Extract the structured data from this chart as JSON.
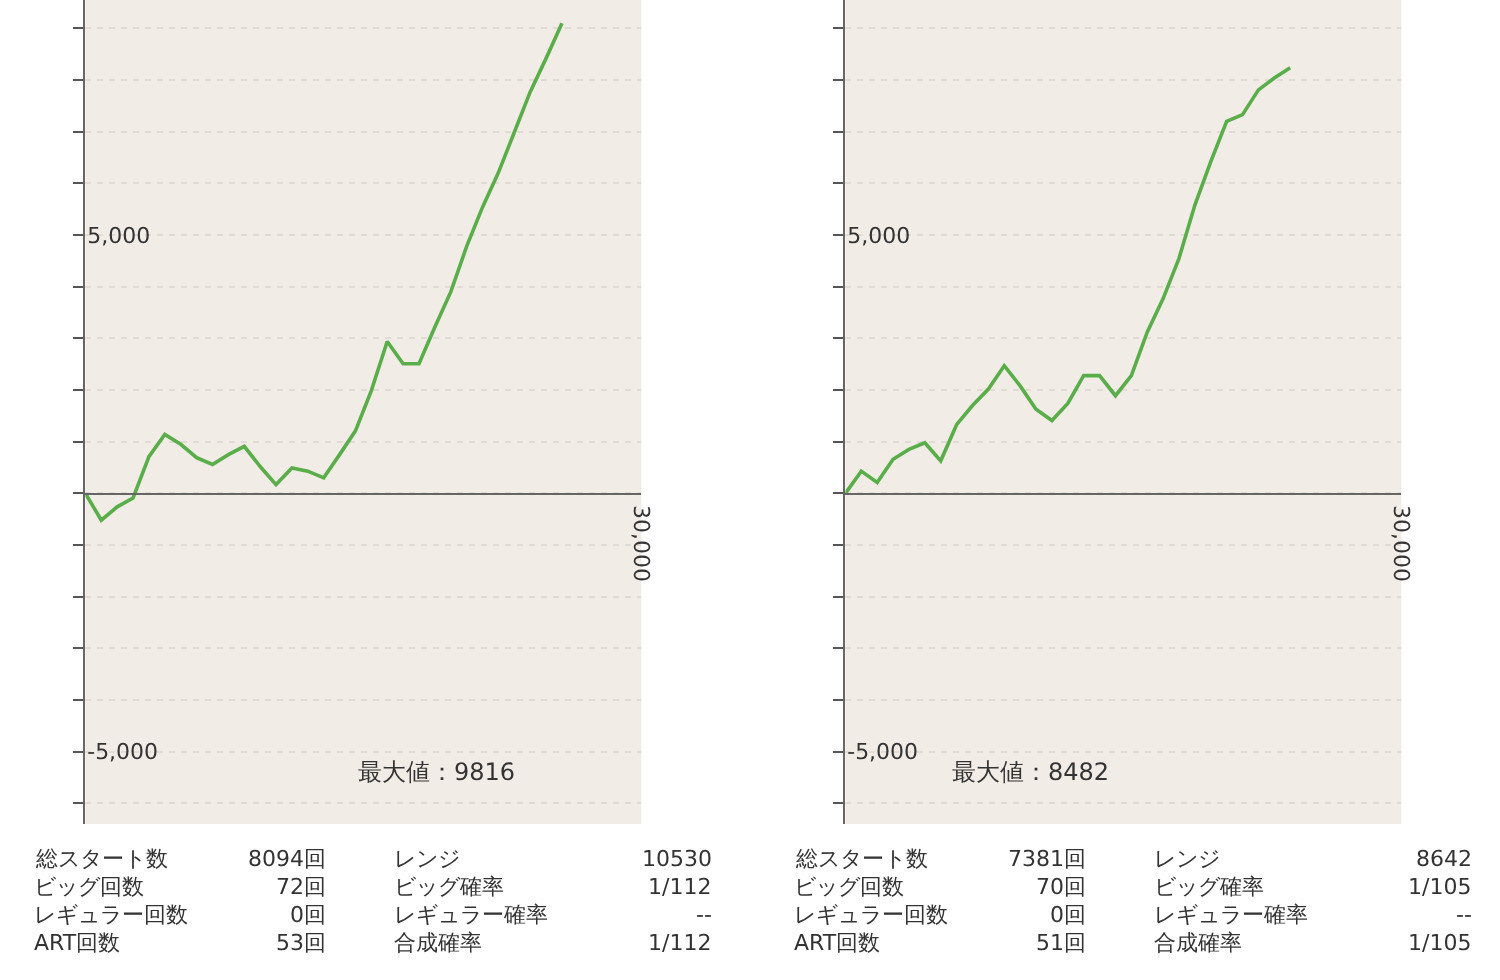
{
  "chart_data": [
    {
      "type": "line",
      "categories": [
        null,
        null,
        null,
        null,
        null,
        null,
        null,
        null,
        null,
        null,
        null,
        null,
        null,
        null,
        null,
        null,
        null,
        null,
        null,
        null,
        null,
        null,
        null,
        null,
        null,
        null,
        null,
        null,
        null,
        null,
        null,
        null,
        null,
        null,
        null,
        null
      ],
      "series": [
        {
          "color": "#5aae4a",
          "values": [
            0,
            -520,
            -260,
            -90,
            710,
            1140,
            950,
            690,
            560,
            750,
            910,
            520,
            170,
            490,
            430,
            300,
            750,
            1210,
            1990,
            2940,
            2510,
            2510,
            3220,
            3900,
            4780,
            5540,
            6210,
            6990,
            7770,
            8420,
            9100,
            null,
            null,
            null,
            null,
            null
          ]
        }
      ],
      "ylim": [
        -6400,
        9550
      ],
      "yticks": [
        {
          "value": -6000,
          "label": null
        },
        {
          "value": -5000,
          "label": "-5,000"
        },
        {
          "value": -4000,
          "label": null
        },
        {
          "value": -3000,
          "label": null
        },
        {
          "value": -2000,
          "label": null
        },
        {
          "value": -1000,
          "label": null
        },
        {
          "value": 0,
          "label": null
        },
        {
          "value": 1000,
          "label": null
        },
        {
          "value": 2000,
          "label": null
        },
        {
          "value": 3000,
          "label": null
        },
        {
          "value": 4000,
          "label": null
        },
        {
          "value": 5000,
          "label": "5,000"
        },
        {
          "value": 6000,
          "label": null
        },
        {
          "value": 7000,
          "label": null
        },
        {
          "value": 8000,
          "label": null
        },
        {
          "value": 9000,
          "label": null
        }
      ],
      "grid": "y",
      "marker": "none",
      "line_style": "solid",
      "annotations": [
        "最大値：9816",
        "30,000",
        "総スタート数",
        "8094回",
        "レンジ",
        "10530",
        "ビッグ回数",
        "72回",
        "ビッグ確率",
        "1/112",
        "レギュラー回数",
        "0回",
        "レギュラー確率",
        "--",
        "ART回数",
        "53回",
        "合成確率",
        "1/112"
      ]
    },
    {
      "type": "line",
      "categories": [
        null,
        null,
        null,
        null,
        null,
        null,
        null,
        null,
        null,
        null,
        null,
        null,
        null,
        null,
        null,
        null,
        null,
        null,
        null,
        null,
        null,
        null,
        null,
        null,
        null,
        null,
        null,
        null,
        null,
        null,
        null,
        null,
        null,
        null,
        null,
        null
      ],
      "series": [
        {
          "color": "#5aae4a",
          "values": [
            0,
            430,
            210,
            660,
            850,
            980,
            630,
            1330,
            1700,
            2020,
            2470,
            2080,
            1630,
            1410,
            1740,
            2280,
            2280,
            1890,
            2280,
            3120,
            3770,
            4550,
            5580,
            6420,
            7200,
            7330,
            7810,
            8040,
            8240,
            null,
            null,
            null,
            null,
            null,
            null,
            null
          ]
        }
      ],
      "ylim": [
        -6400,
        9550
      ],
      "yticks": [
        {
          "value": -6000,
          "label": null
        },
        {
          "value": -5000,
          "label": "-5,000"
        },
        {
          "value": -4000,
          "label": null
        },
        {
          "value": -3000,
          "label": null
        },
        {
          "value": -2000,
          "label": null
        },
        {
          "value": -1000,
          "label": null
        },
        {
          "value": 0,
          "label": null
        },
        {
          "value": 1000,
          "label": null
        },
        {
          "value": 2000,
          "label": null
        },
        {
          "value": 3000,
          "label": null
        },
        {
          "value": 4000,
          "label": null
        },
        {
          "value": 5000,
          "label": "5,000"
        },
        {
          "value": 6000,
          "label": null
        },
        {
          "value": 7000,
          "label": null
        },
        {
          "value": 8000,
          "label": null
        },
        {
          "value": 9000,
          "label": null
        }
      ],
      "grid": "y",
      "marker": "none",
      "line_style": "solid",
      "annotations": [
        "最大値：8482",
        "30,000",
        "総スタート数",
        "7381回",
        "レンジ",
        "8642",
        "ビッグ回数",
        "70回",
        "ビッグ確率",
        "1/105",
        "レギュラー回数",
        "0回",
        "レギュラー確率",
        "--",
        "ART回数",
        "51回",
        "合成確率",
        "1/105"
      ]
    }
  ]
}
